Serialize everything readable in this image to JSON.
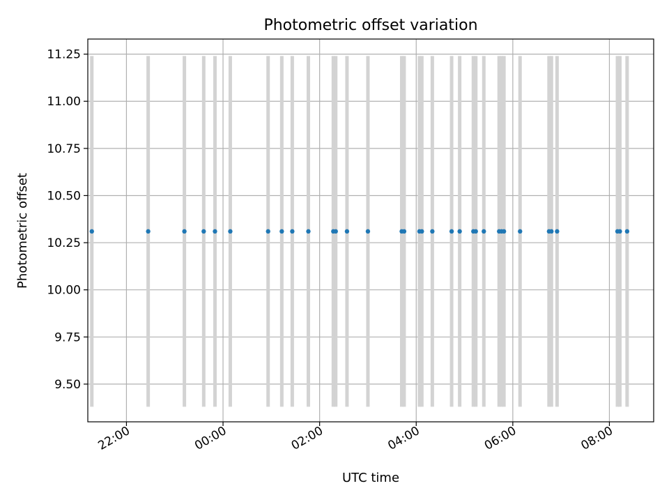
{
  "chart_data": {
    "type": "scatter",
    "title": "Photometric offset variation",
    "xlabel": "UTC time",
    "ylabel": "Photometric offset",
    "xlim": [
      "21:12",
      "08:55"
    ],
    "ylim": [
      9.3,
      11.33
    ],
    "grid": true,
    "x_ticks": [
      "22:00",
      "00:00",
      "02:00",
      "04:00",
      "06:00",
      "08:00"
    ],
    "y_ticks": [
      "9.50",
      "9.75",
      "10.00",
      "10.25",
      "10.50",
      "10.75",
      "11.00",
      "11.25"
    ],
    "y_tick_values": [
      9.5,
      9.75,
      10.0,
      10.25,
      10.5,
      10.75,
      11.0,
      11.25
    ],
    "span_y_range": [
      9.38,
      11.24
    ],
    "point_color": "#1f77b4",
    "span_color": "#d3d3d3",
    "points": [
      {
        "x": "21:17",
        "y": 10.31
      },
      {
        "x": "22:27",
        "y": 10.31
      },
      {
        "x": "23:12",
        "y": 10.31
      },
      {
        "x": "23:36",
        "y": 10.31
      },
      {
        "x": "23:50",
        "y": 10.31
      },
      {
        "x": "00:09",
        "y": 10.31
      },
      {
        "x": "00:56",
        "y": 10.31
      },
      {
        "x": "01:13",
        "y": 10.31
      },
      {
        "x": "01:26",
        "y": 10.31
      },
      {
        "x": "01:46",
        "y": 10.31
      },
      {
        "x": "02:17",
        "y": 10.31
      },
      {
        "x": "02:20",
        "y": 10.31
      },
      {
        "x": "02:34",
        "y": 10.31
      },
      {
        "x": "03:00",
        "y": 10.31
      },
      {
        "x": "03:42",
        "y": 10.31
      },
      {
        "x": "03:45",
        "y": 10.31
      },
      {
        "x": "04:04",
        "y": 10.31
      },
      {
        "x": "04:07",
        "y": 10.31
      },
      {
        "x": "04:20",
        "y": 10.31
      },
      {
        "x": "04:44",
        "y": 10.31
      },
      {
        "x": "04:54",
        "y": 10.31
      },
      {
        "x": "05:11",
        "y": 10.31
      },
      {
        "x": "05:14",
        "y": 10.31
      },
      {
        "x": "05:24",
        "y": 10.31
      },
      {
        "x": "05:43",
        "y": 10.31
      },
      {
        "x": "05:46",
        "y": 10.31
      },
      {
        "x": "05:49",
        "y": 10.31
      },
      {
        "x": "06:09",
        "y": 10.31
      },
      {
        "x": "06:45",
        "y": 10.31
      },
      {
        "x": "06:48",
        "y": 10.31
      },
      {
        "x": "06:55",
        "y": 10.31
      },
      {
        "x": "08:10",
        "y": 10.31
      },
      {
        "x": "08:13",
        "y": 10.31
      },
      {
        "x": "08:22",
        "y": 10.31
      }
    ]
  }
}
